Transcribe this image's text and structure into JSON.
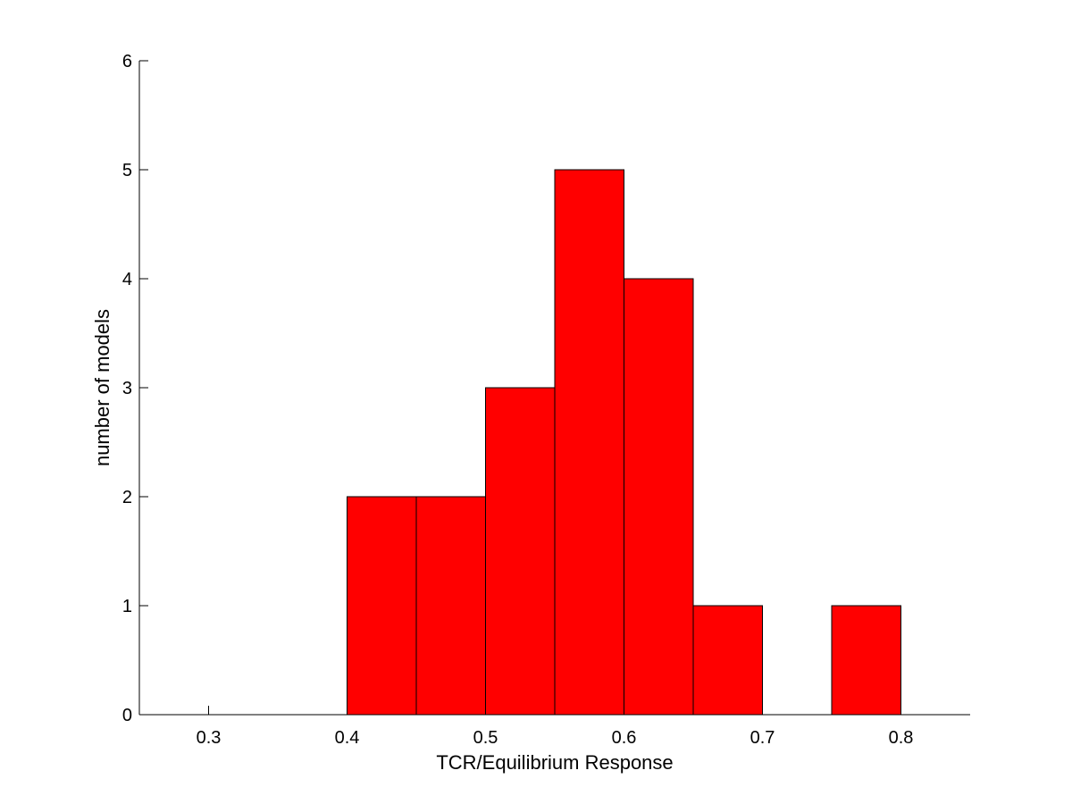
{
  "chart_data": {
    "type": "bar",
    "title": "",
    "xlabel": "TCR/Equilibrium Response",
    "ylabel": "number of models",
    "xlim": [
      0.25,
      0.85
    ],
    "ylim": [
      0,
      6
    ],
    "xticks": [
      "0.3",
      "0.4",
      "0.5",
      "0.6",
      "0.7",
      "0.8"
    ],
    "yticks": [
      "0",
      "1",
      "2",
      "3",
      "4",
      "5",
      "6"
    ],
    "grid": false,
    "bar_color": "#ff0000",
    "edge_color": "#000000",
    "bins": [
      {
        "start": 0.4,
        "end": 0.45,
        "count": 2
      },
      {
        "start": 0.45,
        "end": 0.5,
        "count": 2
      },
      {
        "start": 0.5,
        "end": 0.55,
        "count": 3
      },
      {
        "start": 0.55,
        "end": 0.6,
        "count": 5
      },
      {
        "start": 0.6,
        "end": 0.65,
        "count": 4
      },
      {
        "start": 0.65,
        "end": 0.7,
        "count": 1
      },
      {
        "start": 0.7,
        "end": 0.75,
        "count": 0
      },
      {
        "start": 0.75,
        "end": 0.8,
        "count": 1
      }
    ]
  }
}
